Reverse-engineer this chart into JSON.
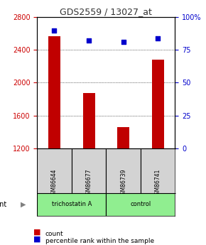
{
  "title": "GDS2559 / 13027_at",
  "samples": [
    "GSM86644",
    "GSM86677",
    "GSM86739",
    "GSM86741"
  ],
  "counts": [
    2570,
    1870,
    1460,
    2280
  ],
  "percentile_ranks": [
    90,
    82,
    81,
    84
  ],
  "groups": [
    "trichostatin A",
    "trichostatin A",
    "control",
    "control"
  ],
  "group_colors": {
    "trichostatin A": "#90EE90",
    "control": "#90EE90"
  },
  "ylim_left": [
    1200,
    2800
  ],
  "ylim_right": [
    0,
    100
  ],
  "yticks_left": [
    1200,
    1600,
    2000,
    2400,
    2800
  ],
  "yticks_right": [
    0,
    25,
    50,
    75,
    100
  ],
  "bar_color": "#C00000",
  "dot_color": "#0000CC",
  "bar_width": 0.35,
  "title_color": "#333333",
  "left_tick_color": "#CC0000",
  "right_tick_color": "#0000CC",
  "grid_color": "#000000",
  "sample_box_color": "#D3D3D3",
  "trichostatin_color": "#90EE90",
  "control_color": "#90EE90",
  "legend_count_color": "#CC0000",
  "legend_pct_color": "#0000CC"
}
